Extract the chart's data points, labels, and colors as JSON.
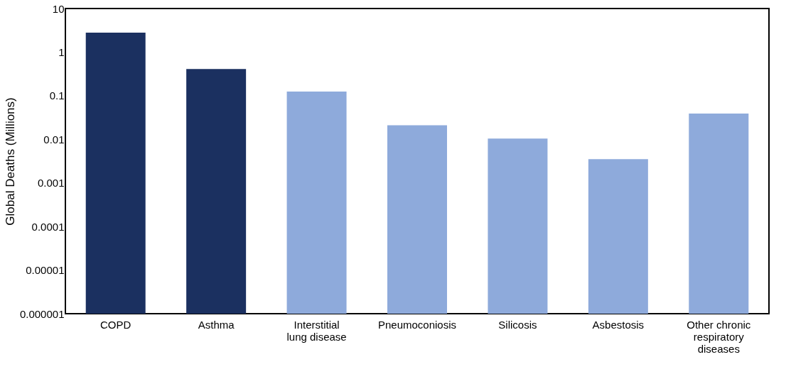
{
  "chart_data": {
    "type": "bar",
    "ylabel": "Global Deaths (Millions)",
    "categories": [
      "COPD",
      "Asthma",
      "Interstitial lung disease",
      "Pneumoconiosis",
      "Silicosis",
      "Asbestosis",
      "Other chronic respiratory diseases"
    ],
    "values": [
      2.8,
      0.41,
      0.125,
      0.021,
      0.0104,
      0.0035,
      0.039
    ],
    "colors": [
      "#1b3060",
      "#1b3060",
      "#8eaadb",
      "#8eaadb",
      "#8eaadb",
      "#8eaadb",
      "#8eaadb"
    ],
    "log": "y",
    "ylim": [
      1e-06,
      10
    ],
    "yticks": [
      {
        "value": 1e-06,
        "label": "0.000001"
      },
      {
        "value": 1e-05,
        "label": "0.00001"
      },
      0.0001,
      0.001,
      0.01,
      0.1,
      1,
      10
    ],
    "grid": false,
    "legend": false
  }
}
